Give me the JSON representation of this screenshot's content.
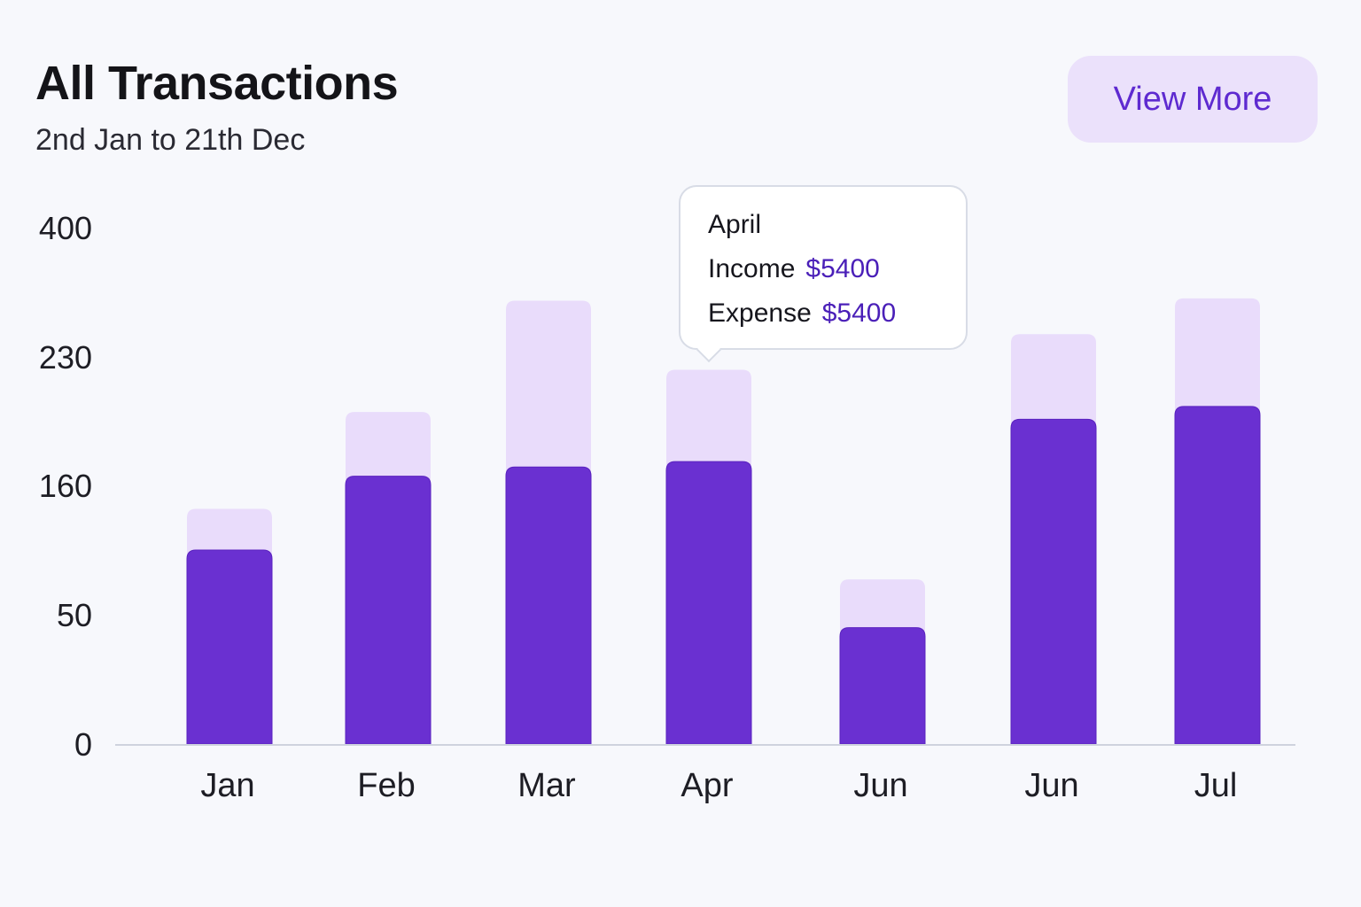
{
  "header": {
    "title": "All Transactions",
    "subtitle": "2nd Jan to 21th Dec"
  },
  "actions": {
    "view_more_label": "View More"
  },
  "tooltip": {
    "month": "April",
    "income_label": "Income",
    "income_value": "$5400",
    "expense_label": "Expense",
    "expense_value": "$5400"
  },
  "colors": {
    "income": "#6a30d1",
    "expense": "#e9dcfb",
    "accent": "#5e2ad0",
    "axis": "#cfd3de"
  },
  "chart_data": {
    "type": "bar",
    "stacked": false,
    "categories": [
      "Jan",
      "Feb",
      "Mar",
      "Apr",
      "Jun",
      "Jun",
      "Jul"
    ],
    "yticks": [
      0,
      50,
      160,
      230,
      400
    ],
    "series": [
      {
        "values": [
          105,
          165,
          170,
          173,
          45,
          196,
          203
        ]
      },
      {
        "values": [
          140,
          200,
          304,
          223,
          80,
          260,
          307
        ]
      }
    ],
    "xlabel": "",
    "ylabel": "",
    "legend": "none",
    "grid": false
  }
}
